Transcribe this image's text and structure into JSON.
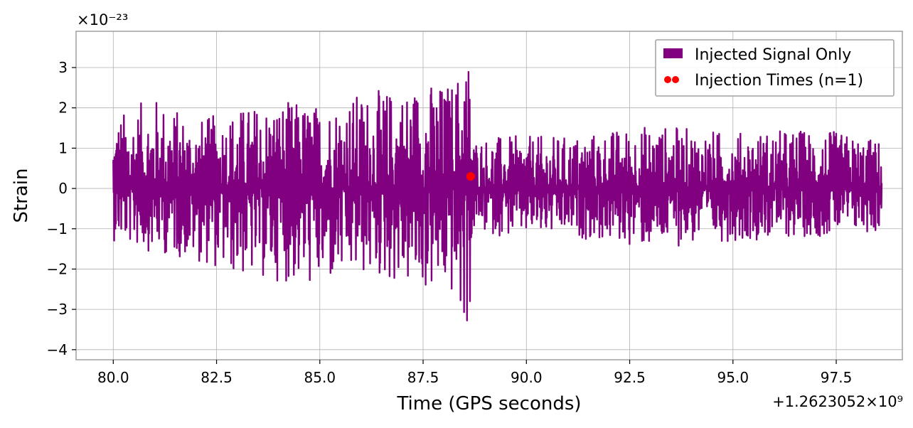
{
  "chart_data": {
    "type": "line",
    "title": "",
    "xlabel": "Time (GPS seconds)",
    "ylabel": "Strain",
    "x_offset_label": "+1.2623052×10⁹",
    "y_scale_label": "×10⁻²³",
    "xlim": [
      79.1,
      99.1
    ],
    "ylim": [
      -4.25,
      3.9
    ],
    "x_ticks": [
      80.0,
      82.5,
      85.0,
      87.5,
      90.0,
      92.5,
      95.0,
      97.5
    ],
    "x_tick_labels": [
      "80.0",
      "82.5",
      "85.0",
      "87.5",
      "90.0",
      "92.5",
      "95.0",
      "97.5"
    ],
    "y_ticks": [
      -4,
      -3,
      -2,
      -1,
      0,
      1,
      2,
      3
    ],
    "y_tick_labels": [
      "−4",
      "−3",
      "−2",
      "−1",
      "0",
      "1",
      "2",
      "3"
    ],
    "grid": true,
    "legend_position": "top-right",
    "series": [
      {
        "name": "Injected Signal Only",
        "color": "#800080",
        "kind": "line",
        "x_range": [
          80.0,
          98.6
        ],
        "envelope": {
          "x": [
            80.0,
            81.0,
            82.0,
            83.0,
            84.0,
            85.0,
            86.0,
            87.0,
            87.5,
            88.0,
            88.3,
            88.5,
            88.65,
            88.7,
            89.5,
            91.0,
            93.0,
            95.0,
            97.0,
            98.6
          ],
          "peak": [
            1.8,
            2.3,
            1.7,
            2.0,
            2.2,
            2.1,
            2.4,
            2.5,
            2.7,
            2.6,
            2.8,
            3.5,
            3.4,
            1.3,
            1.3,
            1.3,
            1.6,
            1.4,
            1.5,
            1.2
          ],
          "trough": [
            -1.3,
            -1.6,
            -1.8,
            -2.2,
            -2.3,
            -2.5,
            -2.2,
            -2.4,
            -2.6,
            -2.6,
            -2.8,
            -3.8,
            -3.1,
            -1.1,
            -1.2,
            -1.2,
            -1.5,
            -1.3,
            -1.2,
            -1.1
          ]
        }
      },
      {
        "name": "Injection Times (n=1)",
        "color": "#ff0000",
        "kind": "scatter",
        "points": [
          {
            "x": 88.65,
            "y": 0.3
          }
        ]
      }
    ]
  }
}
